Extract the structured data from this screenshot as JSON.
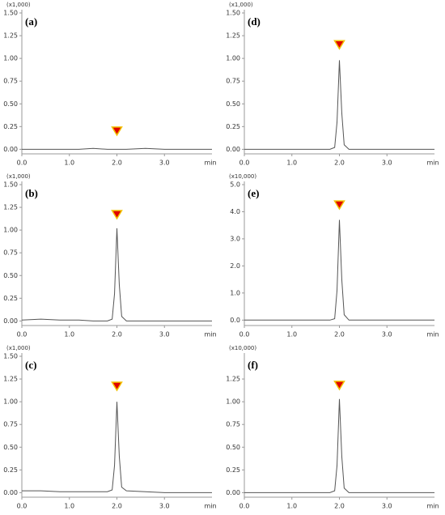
{
  "chart_data": [
    {
      "type": "line",
      "label": "(a)",
      "multiplier": "(x1,000)",
      "x_label": "min",
      "color": "#555555",
      "marker_color": "#e00000",
      "marker_edge_color": "#f2c200",
      "x": [
        0,
        0.4,
        0.8,
        1.2,
        1.5,
        1.8,
        1.9,
        1.95,
        2.0,
        2.05,
        2.1,
        2.2,
        2.6,
        3.0,
        3.4,
        3.8,
        4.0
      ],
      "values": [
        0,
        0,
        0,
        0,
        0.01,
        0,
        0,
        0,
        0,
        0,
        0,
        0,
        0.01,
        0,
        0,
        0,
        0
      ],
      "marker": {
        "x": 2.0,
        "y": 0.2
      },
      "xlim": [
        0,
        4.0
      ],
      "xticks": [
        {
          "value": 0,
          "label": "0.0"
        },
        {
          "value": 1,
          "label": "1.0"
        },
        {
          "value": 2,
          "label": "2.0"
        },
        {
          "value": 3,
          "label": "3.0"
        }
      ],
      "ylim": [
        -0.05,
        1.5
      ],
      "yticks": [
        {
          "value": 0,
          "label": "0.00"
        },
        {
          "value": 0.25,
          "label": "0.25"
        },
        {
          "value": 0.5,
          "label": "0.50"
        },
        {
          "value": 0.75,
          "label": "0.75"
        },
        {
          "value": 1,
          "label": "1.00"
        },
        {
          "value": 1.25,
          "label": "1.25"
        },
        {
          "value": 1.5,
          "label": "1.50"
        }
      ]
    },
    {
      "type": "line",
      "label": "(d)",
      "multiplier": "(x1,000)",
      "x_label": "min",
      "color": "#555555",
      "marker_color": "#e00000",
      "marker_edge_color": "#f2c200",
      "x": [
        0,
        0.4,
        0.8,
        1.2,
        1.5,
        1.8,
        1.9,
        1.95,
        2.0,
        2.05,
        2.1,
        2.2,
        2.6,
        3.0,
        3.4,
        3.8,
        4.0
      ],
      "values": [
        0,
        0,
        0,
        0,
        0,
        0,
        0.02,
        0.3,
        0.98,
        0.4,
        0.05,
        0,
        0,
        0,
        0,
        0,
        0
      ],
      "marker": {
        "x": 2.0,
        "y": 1.15
      },
      "xlim": [
        0,
        4.0
      ],
      "xticks": [
        {
          "value": 0,
          "label": "0.0"
        },
        {
          "value": 1,
          "label": "1.0"
        },
        {
          "value": 2,
          "label": "2.0"
        },
        {
          "value": 3,
          "label": "3.0"
        }
      ],
      "ylim": [
        -0.05,
        1.5
      ],
      "yticks": [
        {
          "value": 0,
          "label": "0.00"
        },
        {
          "value": 0.25,
          "label": "0.25"
        },
        {
          "value": 0.5,
          "label": "0.50"
        },
        {
          "value": 0.75,
          "label": "0.75"
        },
        {
          "value": 1,
          "label": "1.00"
        },
        {
          "value": 1.25,
          "label": "1.25"
        },
        {
          "value": 1.5,
          "label": "1.50"
        }
      ]
    },
    {
      "type": "line",
      "label": "(b)",
      "multiplier": "(x1,000)",
      "x_label": "min",
      "color": "#555555",
      "marker_color": "#e00000",
      "marker_edge_color": "#f2c200",
      "x": [
        0,
        0.4,
        0.8,
        1.2,
        1.5,
        1.8,
        1.9,
        1.95,
        2.0,
        2.05,
        2.1,
        2.2,
        2.6,
        3.0,
        3.4,
        3.8,
        4.0
      ],
      "values": [
        0.01,
        0.02,
        0.01,
        0.01,
        0,
        0,
        0.02,
        0.3,
        1.02,
        0.4,
        0.05,
        0,
        0,
        0,
        0,
        0,
        0
      ],
      "marker": {
        "x": 2.0,
        "y": 1.17
      },
      "xlim": [
        0,
        4.0
      ],
      "xticks": [
        {
          "value": 0,
          "label": "0.0"
        },
        {
          "value": 1,
          "label": "1.0"
        },
        {
          "value": 2,
          "label": "2.0"
        },
        {
          "value": 3,
          "label": "3.0"
        }
      ],
      "ylim": [
        -0.05,
        1.5
      ],
      "yticks": [
        {
          "value": 0,
          "label": "0.00"
        },
        {
          "value": 0.25,
          "label": "0.25"
        },
        {
          "value": 0.5,
          "label": "0.50"
        },
        {
          "value": 0.75,
          "label": "0.75"
        },
        {
          "value": 1,
          "label": "1.00"
        },
        {
          "value": 1.25,
          "label": "1.25"
        },
        {
          "value": 1.5,
          "label": "1.50"
        }
      ]
    },
    {
      "type": "line",
      "label": "(e)",
      "multiplier": "(x10,000)",
      "x_label": "min",
      "color": "#555555",
      "marker_color": "#e00000",
      "marker_edge_color": "#f2c200",
      "x": [
        0,
        0.4,
        0.8,
        1.2,
        1.5,
        1.8,
        1.9,
        1.95,
        2.0,
        2.05,
        2.1,
        2.2,
        2.6,
        3.0,
        3.4,
        3.8,
        4.0
      ],
      "values": [
        0,
        0,
        0,
        0,
        0,
        0,
        0.05,
        1.1,
        3.7,
        1.5,
        0.2,
        0,
        0,
        0,
        0,
        0,
        0
      ],
      "marker": {
        "x": 2.0,
        "y": 4.25
      },
      "xlim": [
        0,
        4.0
      ],
      "xticks": [
        {
          "value": 0,
          "label": "0.0"
        },
        {
          "value": 1,
          "label": "1.0"
        },
        {
          "value": 2,
          "label": "2.0"
        },
        {
          "value": 3,
          "label": "3.0"
        }
      ],
      "ylim": [
        -0.2,
        5
      ],
      "yticks": [
        {
          "value": 0,
          "label": "0.0"
        },
        {
          "value": 1,
          "label": "1.0"
        },
        {
          "value": 2,
          "label": "2.0"
        },
        {
          "value": 3,
          "label": "3.0"
        },
        {
          "value": 4,
          "label": "4.0"
        },
        {
          "value": 5,
          "label": "5.0"
        }
      ]
    },
    {
      "type": "line",
      "label": "(c)",
      "multiplier": "(x1,000)",
      "x_label": "min",
      "color": "#555555",
      "marker_color": "#e00000",
      "marker_edge_color": "#f2c200",
      "x": [
        0,
        0.4,
        0.8,
        1.2,
        1.5,
        1.8,
        1.9,
        1.95,
        2.0,
        2.05,
        2.1,
        2.2,
        2.6,
        3.0,
        3.4,
        3.8,
        4.0
      ],
      "values": [
        0.02,
        0.02,
        0.01,
        0.01,
        0.01,
        0.01,
        0.03,
        0.3,
        1.0,
        0.4,
        0.06,
        0.02,
        0.01,
        0,
        0,
        0,
        0
      ],
      "marker": {
        "x": 2.0,
        "y": 1.17
      },
      "xlim": [
        0,
        4.0
      ],
      "xticks": [
        {
          "value": 0,
          "label": "0.0"
        },
        {
          "value": 1,
          "label": "1.0"
        },
        {
          "value": 2,
          "label": "2.0"
        },
        {
          "value": 3,
          "label": "3.0"
        }
      ],
      "ylim": [
        -0.05,
        1.5
      ],
      "yticks": [
        {
          "value": 0,
          "label": "0.00"
        },
        {
          "value": 0.25,
          "label": "0.25"
        },
        {
          "value": 0.5,
          "label": "0.50"
        },
        {
          "value": 0.75,
          "label": "0.75"
        },
        {
          "value": 1,
          "label": "1.00"
        },
        {
          "value": 1.25,
          "label": "1.25"
        },
        {
          "value": 1.5,
          "label": "1.50"
        }
      ]
    },
    {
      "type": "line",
      "label": "(f)",
      "multiplier": "(x10,000)",
      "x_label": "min",
      "color": "#555555",
      "marker_color": "#e00000",
      "marker_edge_color": "#f2c200",
      "x": [
        0,
        0.4,
        0.8,
        1.2,
        1.5,
        1.8,
        1.9,
        1.95,
        2.0,
        2.05,
        2.1,
        2.2,
        2.6,
        3.0,
        3.4,
        3.8,
        4.0
      ],
      "values": [
        0,
        0,
        0,
        0,
        0,
        0,
        0.02,
        0.3,
        1.03,
        0.4,
        0.05,
        0,
        0,
        0,
        0,
        0,
        0
      ],
      "marker": {
        "x": 2.0,
        "y": 1.18
      },
      "xlim": [
        0,
        4.0
      ],
      "xticks": [
        {
          "value": 0,
          "label": "0.0"
        },
        {
          "value": 1,
          "label": "1.0"
        },
        {
          "value": 2,
          "label": "2.0"
        },
        {
          "value": 3,
          "label": "3.0"
        }
      ],
      "ylim": [
        -0.05,
        1.5
      ],
      "yticks": [
        {
          "value": 0,
          "label": "0.00"
        },
        {
          "value": 0.25,
          "label": "0.25"
        },
        {
          "value": 0.5,
          "label": "0.50"
        },
        {
          "value": 0.75,
          "label": "0.75"
        },
        {
          "value": 1,
          "label": "1.00"
        },
        {
          "value": 1.25,
          "label": "1.25"
        }
      ]
    }
  ]
}
